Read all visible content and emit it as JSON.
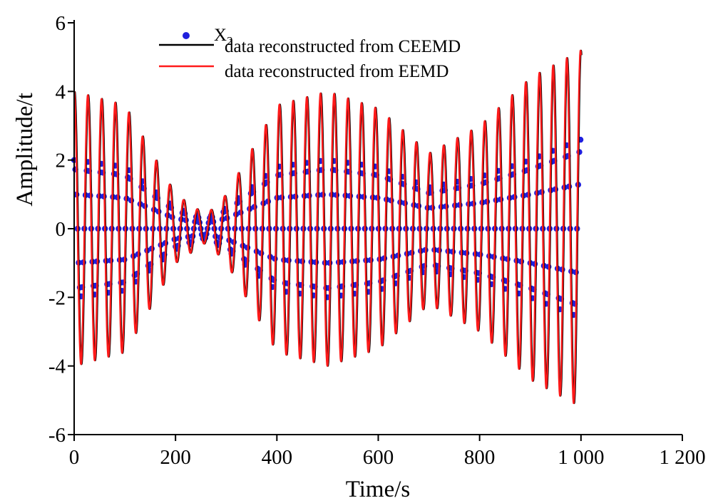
{
  "chart_data": {
    "type": "line",
    "title": "",
    "xlabel": "Time/s",
    "ylabel": "Amplitude/t",
    "xlim": [
      0,
      1200
    ],
    "ylim": [
      -6,
      6
    ],
    "x_ticks": [
      0,
      200,
      400,
      600,
      800,
      1000,
      1200
    ],
    "x_tick_labels": [
      "0",
      "200",
      "400",
      "600",
      "800",
      "1 000",
      "1 200"
    ],
    "y_ticks": [
      -6,
      -4,
      -2,
      0,
      2,
      4,
      6
    ],
    "y_tick_labels": [
      "-6",
      "-4",
      "-2",
      "0",
      "2",
      "4",
      "6"
    ],
    "grid": false,
    "legend_position": "top-center",
    "colors": {
      "x2": "#1f1fdd",
      "ceemd": "#000000",
      "eemd": "#ff1a1a"
    },
    "series": [
      {
        "name": "X₂",
        "name_main": "X",
        "name_sub": "2",
        "style": "markers",
        "period": 27,
        "envelope_t": [
          0,
          100,
          200,
          260,
          300,
          400,
          500,
          600,
          700,
          800,
          900,
          1000
        ],
        "envelope_a": [
          2.0,
          1.8,
          0.6,
          0.3,
          0.6,
          1.8,
          2.0,
          1.8,
          1.2,
          1.5,
          2.0,
          2.6
        ]
      },
      {
        "name": "data reconstructed from CEEMD",
        "style": "line",
        "period": 27,
        "envelope_t": [
          0,
          100,
          200,
          260,
          300,
          400,
          500,
          600,
          700,
          800,
          900,
          1000
        ],
        "envelope_a": [
          4.0,
          3.6,
          1.0,
          0.4,
          1.0,
          3.6,
          4.0,
          3.5,
          2.2,
          3.0,
          4.4,
          5.2
        ]
      },
      {
        "name": "data reconstructed from EEMD",
        "style": "line",
        "period": 27,
        "envelope_t": [
          0,
          100,
          200,
          260,
          300,
          400,
          500,
          600,
          700,
          800,
          900,
          1000
        ],
        "envelope_a": [
          4.0,
          3.6,
          1.0,
          0.4,
          1.0,
          3.6,
          4.0,
          3.5,
          2.2,
          3.0,
          4.4,
          5.2
        ]
      }
    ]
  }
}
